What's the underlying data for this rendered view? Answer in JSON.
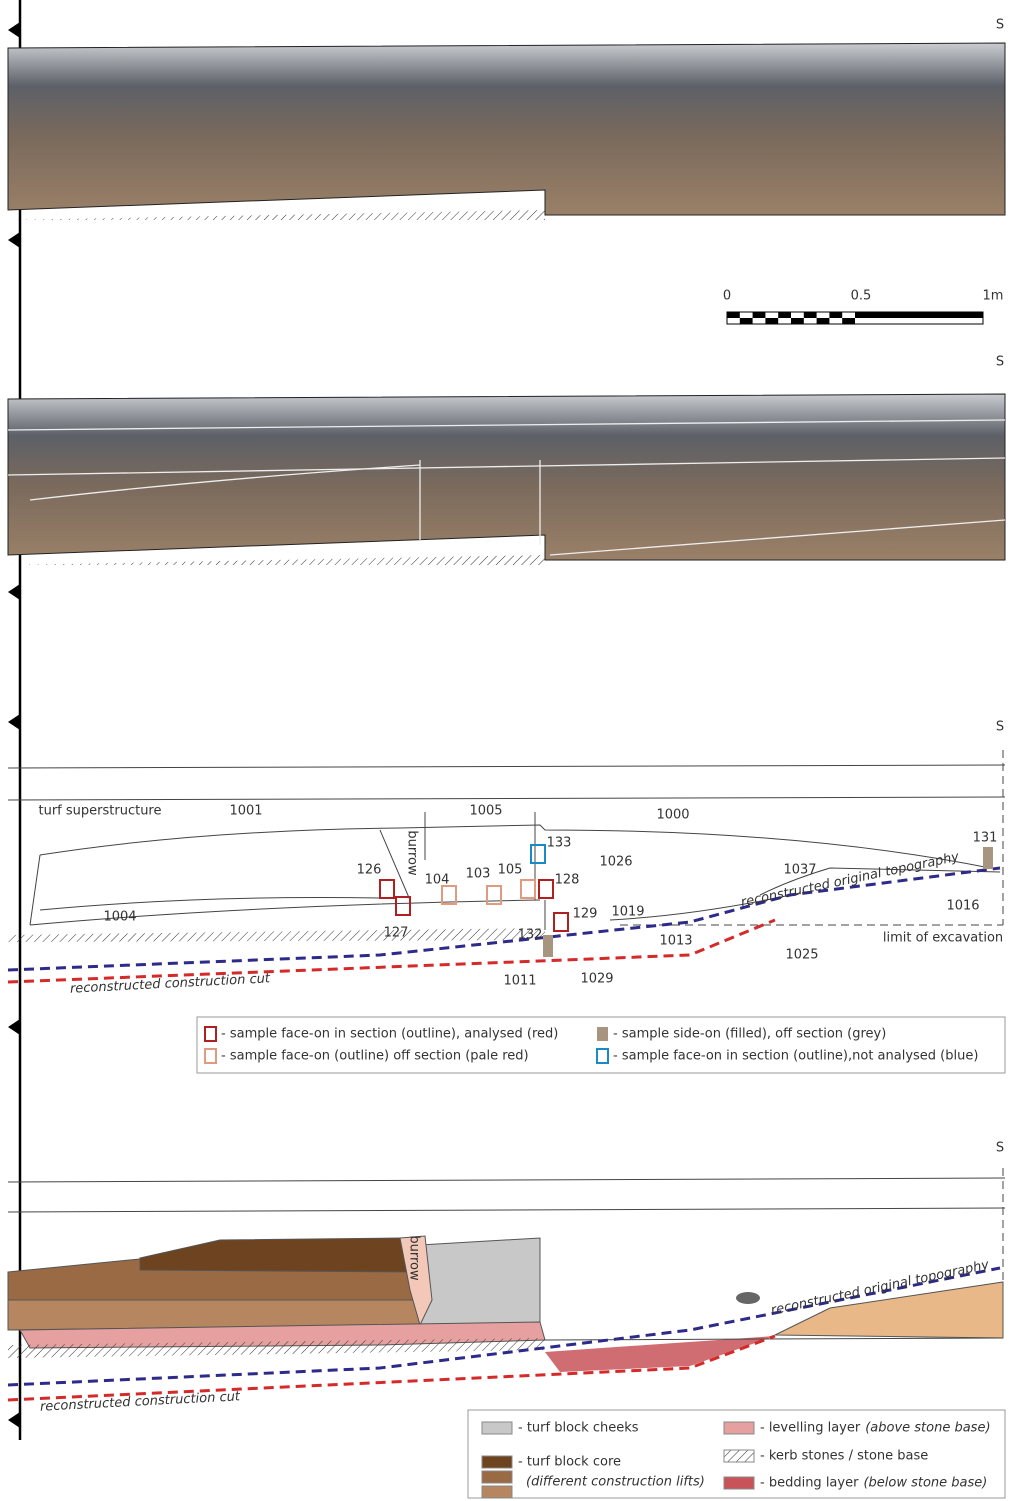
{
  "north_labels": [
    "S",
    "S",
    "S",
    "S"
  ],
  "scale_bar": {
    "labels": [
      "0",
      "0.5",
      "1m"
    ]
  },
  "section_drawing": {
    "labels": [
      "turf superstructure",
      "1001",
      "1005",
      "1000",
      "burrow",
      "133",
      "1026",
      "126",
      "104",
      "103",
      "105",
      "128",
      "1037",
      "131",
      "1004",
      "127",
      "132",
      "129",
      "1019",
      "1013",
      "1016",
      "limit of excavation",
      "1025",
      "1011",
      "1029"
    ],
    "topography_label": "reconstructed original topography",
    "cut_label": "reconstructed construction cut"
  },
  "sample_legend": [
    "- sample face-on in section (outline), analysed (red)",
    "- sample side-on (filled), off section (grey)",
    "- sample face-on (outline) off section (pale red)",
    "- sample face-on in section (outline),not analysed (blue)"
  ],
  "interpretation_drawing": {
    "burrow_label": "burrow",
    "topography_label": "reconstructed original topography",
    "cut_label": "reconstructed construction cut"
  },
  "interpretation_legend": [
    {
      "text": "- turf block cheeks"
    },
    {
      "text": "- turf block core",
      "note": "(different construction lifts)"
    },
    {
      "text": "- levelling layer",
      "note": "(above stone base)"
    },
    {
      "text": "- kerb stones / stone base"
    },
    {
      "text": "- bedding layer",
      "note": "(below stone base)"
    }
  ]
}
